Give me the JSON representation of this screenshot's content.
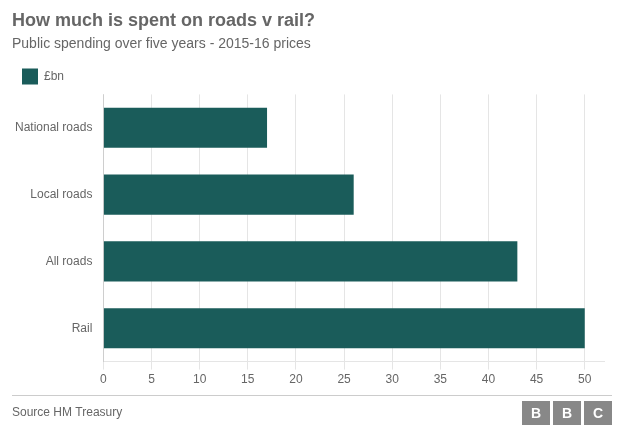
{
  "chart_data": {
    "type": "bar",
    "orientation": "horizontal",
    "title": "How much is spent on roads v rail?",
    "subtitle": "Public spending over five years - 2015-16 prices",
    "categories": [
      "National roads",
      "Local roads",
      "All roads",
      "Rail"
    ],
    "series": [
      {
        "name": "£bn",
        "color": "#1a5c5a",
        "values": [
          17,
          26,
          43,
          50
        ]
      }
    ],
    "xlim": [
      0,
      52
    ],
    "xticks": [
      0,
      5,
      10,
      15,
      20,
      25,
      30,
      35,
      40,
      45,
      50
    ],
    "grid": true,
    "legend": "top left",
    "source": "Source HM Treasury",
    "logo": [
      "B",
      "B",
      "C"
    ],
    "logo_color": "#888888"
  }
}
